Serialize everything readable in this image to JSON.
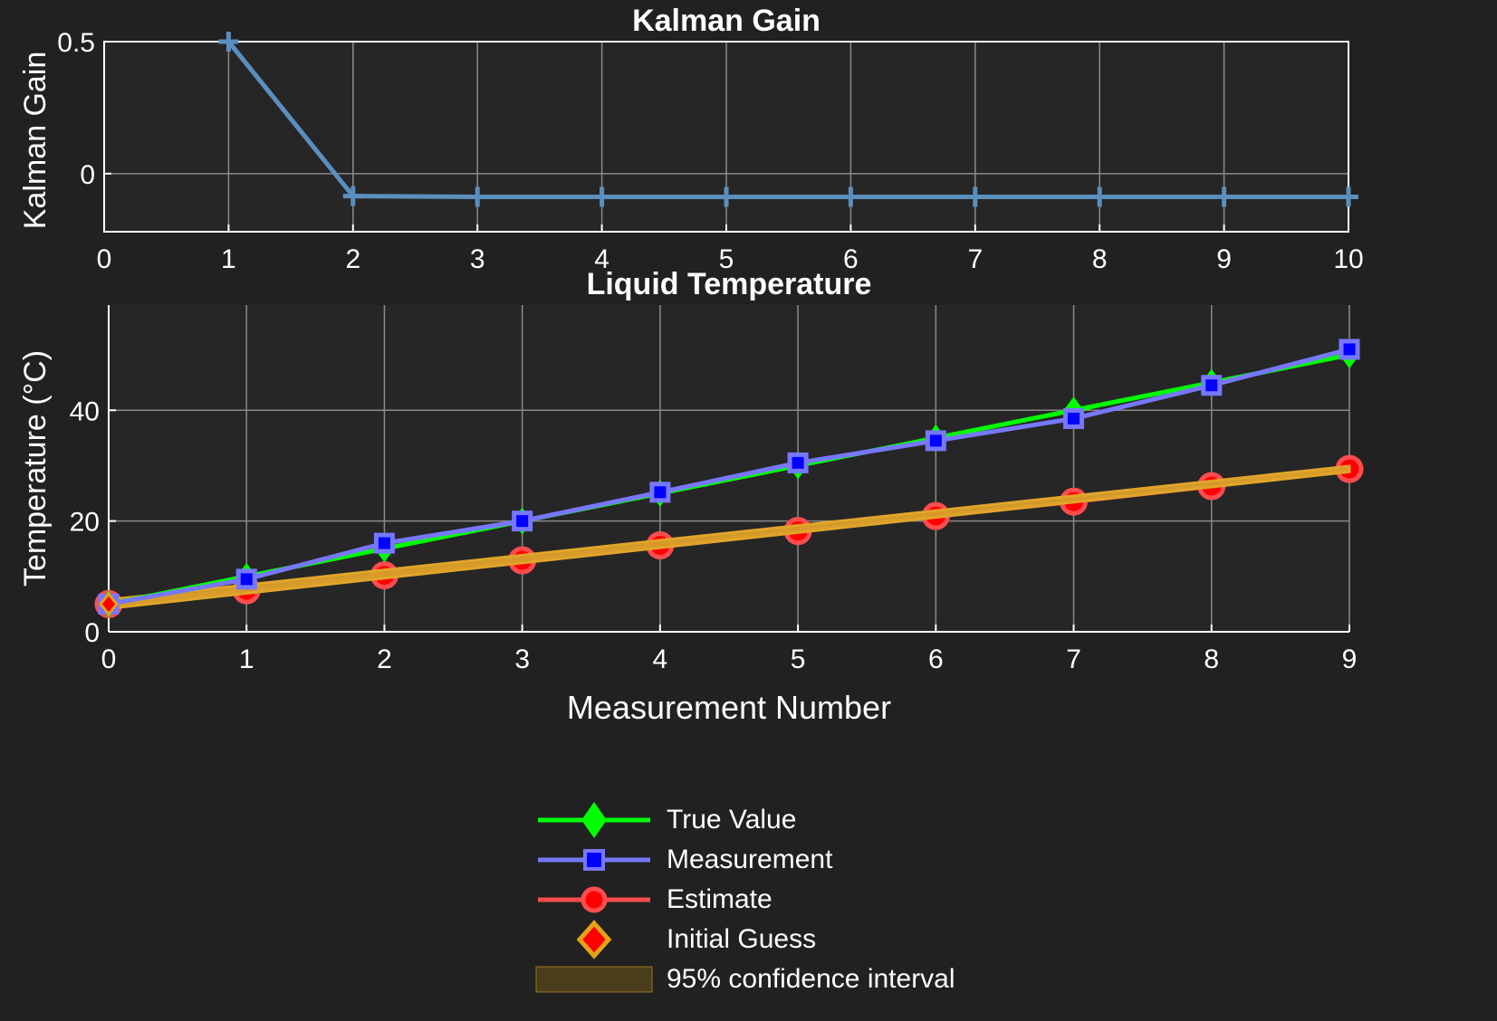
{
  "colors": {
    "background": "#212121",
    "axes_background": "#262626",
    "grid": "#8a8a8a",
    "axis_line": "#ffffff",
    "text": "#ffffff",
    "gain": "#5a8fbe",
    "true_value": "#00ff00",
    "measurement": "#7777ff",
    "measurement_marker_inner": "#0000ff",
    "estimate": "#ff4d4d",
    "estimate_marker_inner": "#ff0000",
    "initial_guess": "#e6a219",
    "ci_fill": "#4a3d1c",
    "ci_line": "#e0a52a"
  },
  "chart_data": [
    {
      "id": "kalman_gain",
      "type": "line",
      "title": "Kalman Gain",
      "xlabel": "",
      "ylabel": "Kalman Gain",
      "xlim": [
        0,
        10
      ],
      "ylim": [
        -0.22,
        0.5
      ],
      "xticks": [
        0,
        1,
        2,
        3,
        4,
        5,
        6,
        7,
        8,
        9,
        10
      ],
      "yticks": [
        0,
        0.5
      ],
      "ytick_labels": [
        "0",
        "0.5"
      ],
      "grid": true,
      "series": [
        {
          "marker": "plus",
          "x": [
            1,
            2,
            3,
            4,
            5,
            6,
            7,
            8,
            9,
            10
          ],
          "values": [
            0.5,
            -0.085,
            -0.088,
            -0.088,
            -0.088,
            -0.088,
            -0.088,
            -0.088,
            -0.088,
            -0.088
          ]
        }
      ]
    },
    {
      "id": "liquid_temperature",
      "type": "line",
      "title": "Liquid Temperature",
      "xlabel": "Measurement Number",
      "ylabel": "Temperature (°C)",
      "xlim": [
        0,
        9
      ],
      "ylim": [
        0,
        59
      ],
      "xticks": [
        0,
        1,
        2,
        3,
        4,
        5,
        6,
        7,
        8,
        9
      ],
      "yticks": [
        0,
        20,
        40
      ],
      "grid": true,
      "legend_position": "bottom-center",
      "series": [
        {
          "name": "True Value",
          "marker": "diamond",
          "x": [
            0,
            1,
            2,
            3,
            4,
            5,
            6,
            7,
            8,
            9
          ],
          "values": [
            5,
            10,
            15,
            20,
            25,
            30,
            35,
            40,
            45,
            50
          ]
        },
        {
          "name": "Measurement",
          "marker": "square",
          "x": [
            0,
            1,
            2,
            3,
            4,
            5,
            6,
            7,
            8,
            9
          ],
          "values": [
            5,
            9.5,
            16,
            20,
            25.2,
            30.5,
            34.5,
            38.5,
            44.5,
            51
          ]
        },
        {
          "name": "Estimate",
          "marker": "circle",
          "x": [
            0,
            1,
            2,
            3,
            4,
            5,
            6,
            7,
            8,
            9
          ],
          "values": [
            5,
            7.5,
            10.2,
            12.9,
            15.6,
            18.2,
            20.9,
            23.5,
            26.3,
            29.4
          ]
        },
        {
          "name": "Initial Guess",
          "marker": "diamond"
        },
        {
          "name": "95% confidence interval",
          "type": "band",
          "x": [
            0,
            9
          ],
          "lower": [
            4.2,
            28.9
          ],
          "upper": [
            5.8,
            29.9
          ]
        }
      ]
    }
  ]
}
